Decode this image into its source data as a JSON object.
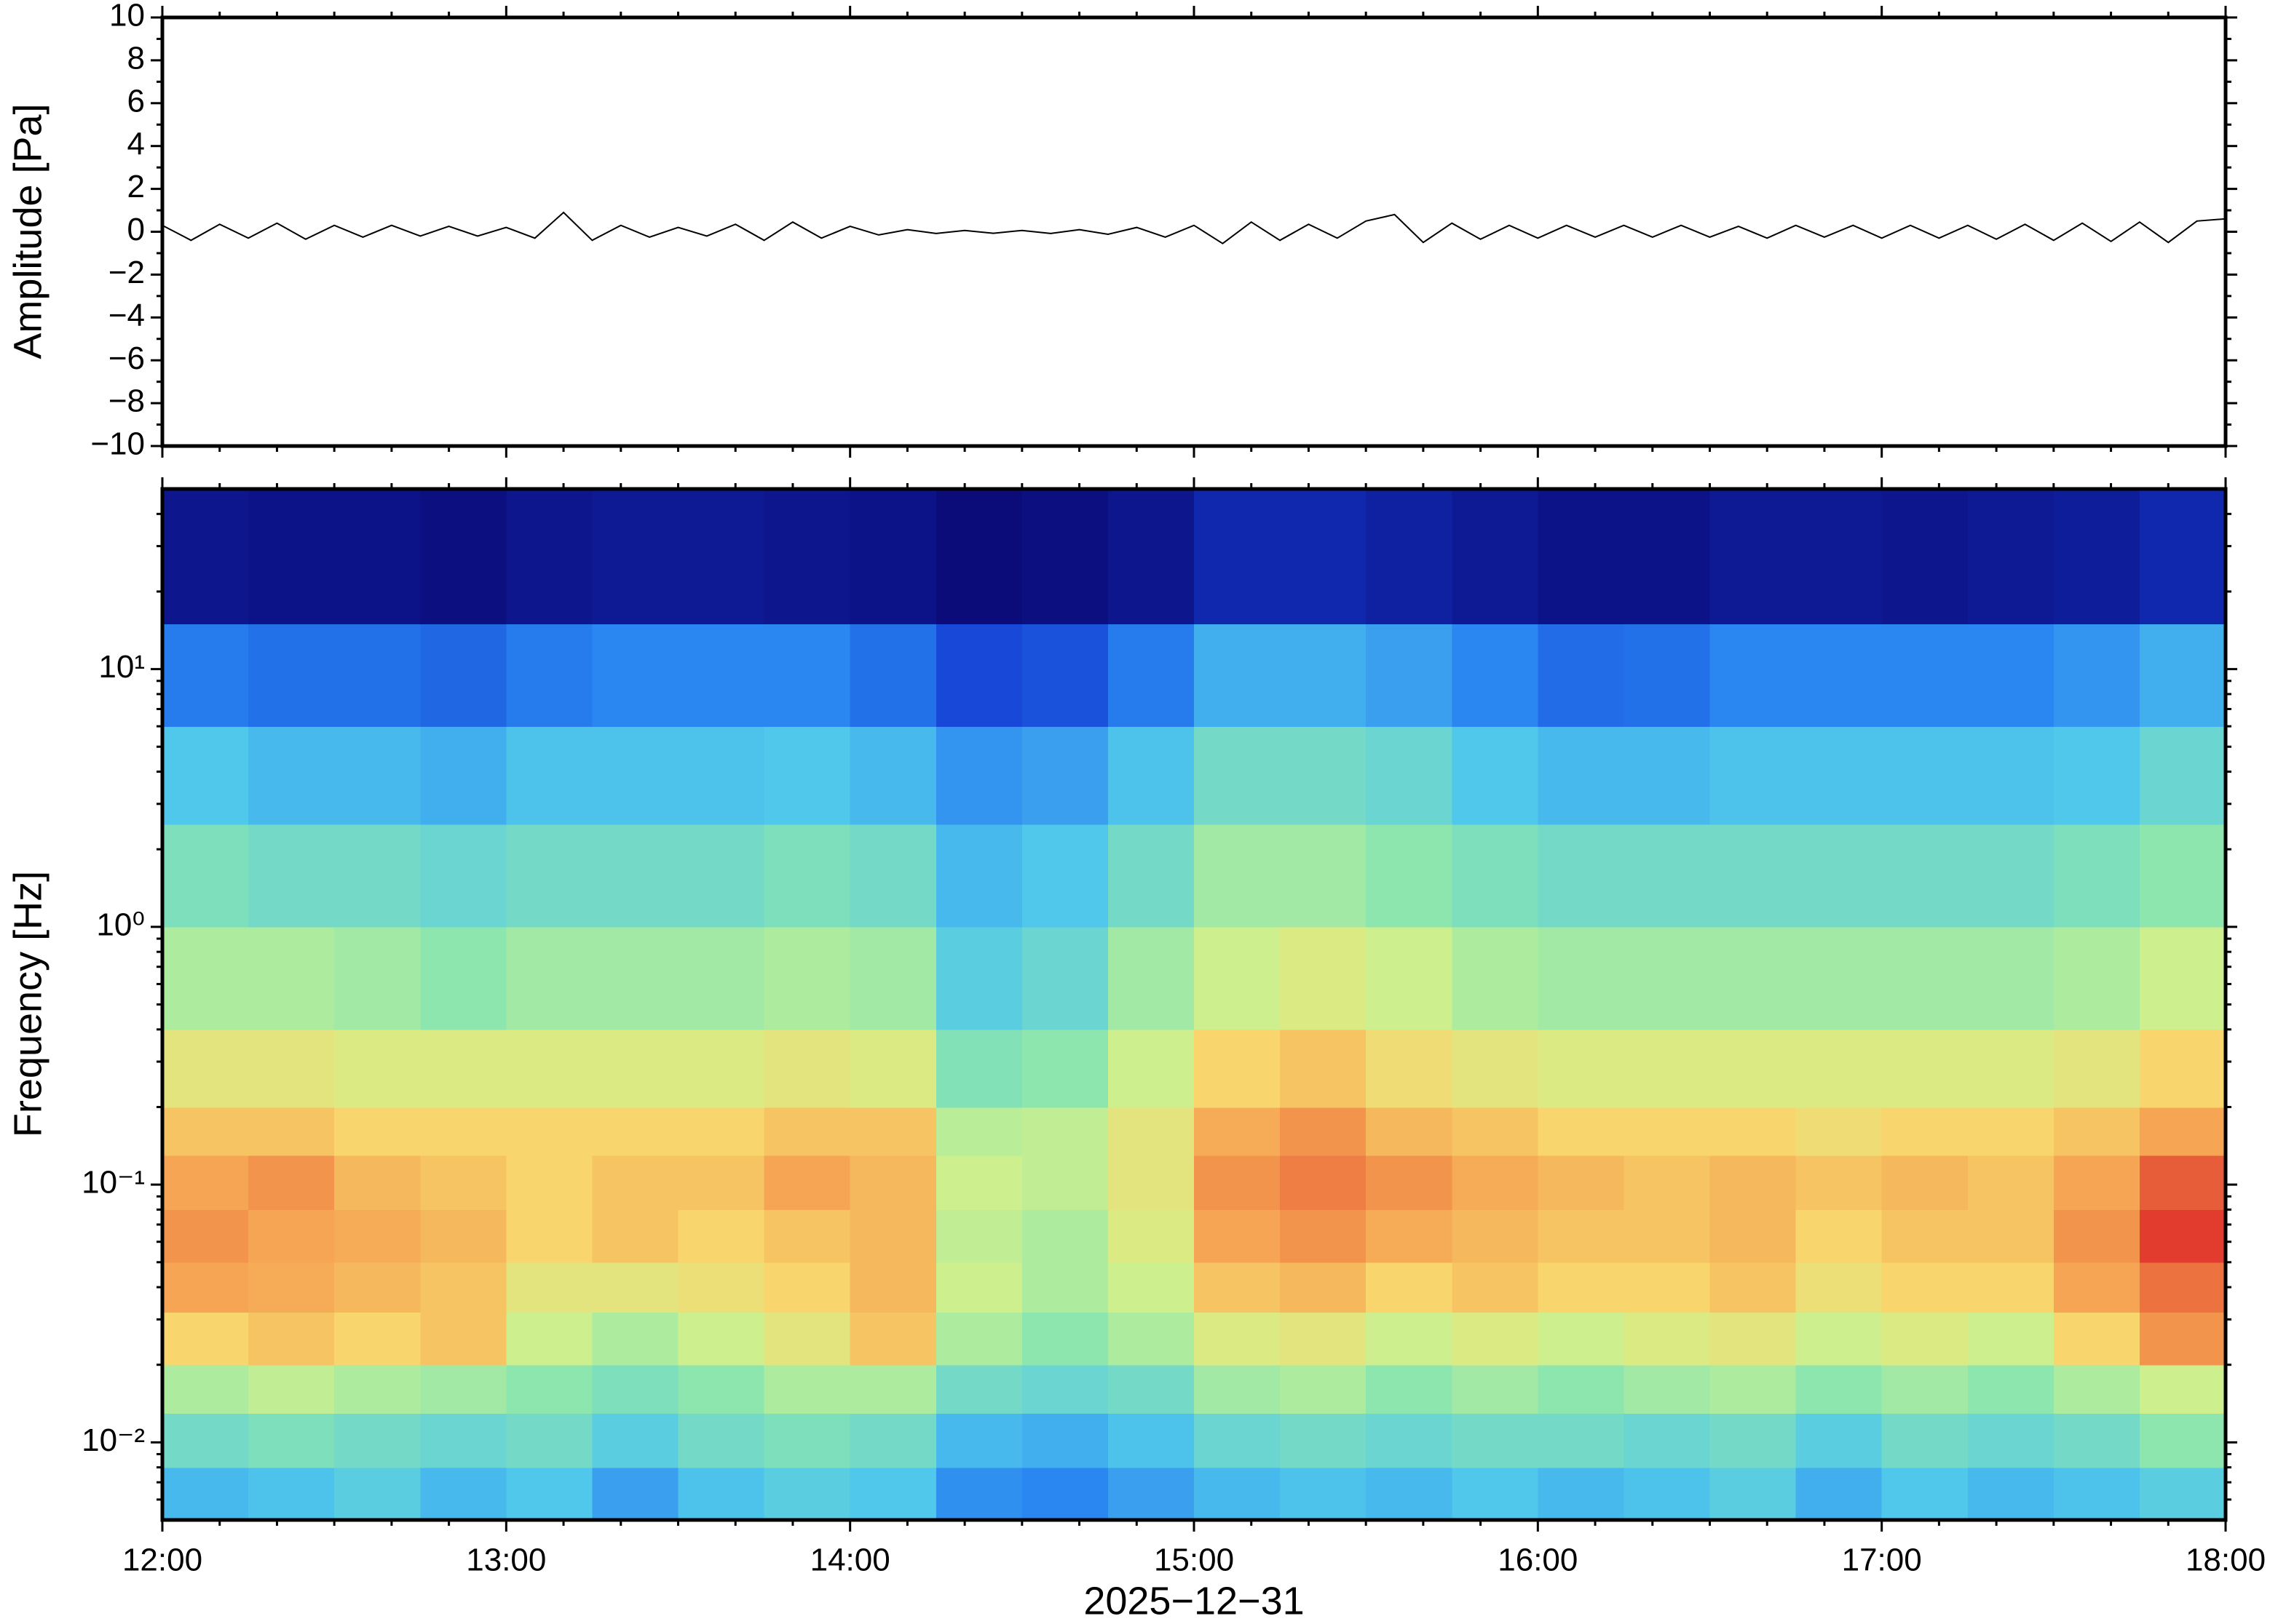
{
  "chart_data": [
    {
      "type": "line",
      "ylabel": "Amplitude [Pa]",
      "color": "#000000",
      "xlim": [
        0,
        360
      ],
      "xticks": [
        0,
        60,
        120,
        180,
        240,
        300,
        360
      ],
      "ylim": [
        -10,
        10
      ],
      "yticks": [
        {
          "value": -10,
          "label": "−10"
        },
        {
          "value": -8,
          "label": "−8"
        },
        {
          "value": -6,
          "label": "−6"
        },
        {
          "value": -4,
          "label": "−4"
        },
        {
          "value": -2,
          "label": "−2"
        },
        0,
        2,
        4,
        6,
        8,
        10
      ],
      "x": [
        0,
        5,
        10,
        15,
        20,
        25,
        30,
        35,
        40,
        45,
        50,
        55,
        60,
        65,
        70,
        75,
        80,
        85,
        90,
        95,
        100,
        105,
        110,
        115,
        120,
        125,
        130,
        135,
        140,
        145,
        150,
        155,
        160,
        165,
        170,
        175,
        180,
        185,
        190,
        195,
        200,
        205,
        210,
        215,
        220,
        225,
        230,
        235,
        240,
        245,
        250,
        255,
        260,
        265,
        270,
        275,
        280,
        285,
        290,
        295,
        300,
        305,
        310,
        315,
        320,
        325,
        330,
        335,
        340,
        345,
        350,
        355,
        360
      ],
      "values": [
        0.3,
        -0.4,
        0.35,
        -0.3,
        0.4,
        -0.35,
        0.3,
        -0.25,
        0.3,
        -0.2,
        0.25,
        -0.2,
        0.2,
        -0.3,
        0.9,
        -0.4,
        0.3,
        -0.25,
        0.2,
        -0.2,
        0.35,
        -0.4,
        0.45,
        -0.3,
        0.25,
        -0.15,
        0.1,
        -0.08,
        0.06,
        -0.07,
        0.06,
        -0.08,
        0.1,
        -0.12,
        0.2,
        -0.25,
        0.3,
        -0.55,
        0.45,
        -0.4,
        0.35,
        -0.3,
        0.5,
        0.8,
        -0.5,
        0.4,
        -0.35,
        0.3,
        -0.3,
        0.3,
        -0.25,
        0.3,
        -0.25,
        0.3,
        -0.25,
        0.25,
        -0.3,
        0.3,
        -0.25,
        0.3,
        -0.3,
        0.3,
        -0.3,
        0.3,
        -0.35,
        0.35,
        -0.4,
        0.4,
        -0.45,
        0.45,
        -0.5,
        0.5,
        0.6
      ]
    },
    {
      "type": "heatmap",
      "ylabel": "Frequency [Hz]",
      "xlabel": "2025−12−31",
      "colormap": "jet",
      "log_y": true,
      "xlim": [
        0,
        360
      ],
      "xticks": [
        {
          "value": 0,
          "label": "12:00"
        },
        {
          "value": 60,
          "label": "13:00"
        },
        {
          "value": 120,
          "label": "14:00"
        },
        {
          "value": 180,
          "label": "15:00"
        },
        {
          "value": 240,
          "label": "16:00"
        },
        {
          "value": 300,
          "label": "17:00"
        },
        {
          "value": 360,
          "label": "18:00"
        }
      ],
      "ylim": [
        0.005,
        50
      ],
      "yticks": [
        {
          "value": 0.01,
          "label": "10⁻²"
        },
        {
          "value": 0.1,
          "label": "10⁻¹"
        },
        {
          "value": 1,
          "label": "10⁰"
        },
        {
          "value": 10,
          "label": "10¹"
        }
      ],
      "x_edges": [
        0,
        15,
        30,
        45,
        60,
        75,
        90,
        105,
        120,
        135,
        150,
        165,
        180,
        195,
        210,
        225,
        240,
        255,
        270,
        285,
        300,
        315,
        330,
        345,
        360
      ],
      "y_edges": [
        0.005,
        0.008,
        0.013,
        0.02,
        0.032,
        0.05,
        0.08,
        0.13,
        0.2,
        0.4,
        1,
        2.5,
        6,
        15,
        50
      ],
      "z": [
        [
          4,
          4.2,
          4.5,
          4,
          4.3,
          3.5,
          4.2,
          4.5,
          4.3,
          3.2,
          3,
          3.5,
          4,
          4.2,
          4,
          4.3,
          4,
          4.2,
          4.5,
          3.8,
          4.3,
          4,
          4.2,
          4.5
        ],
        [
          5,
          5.2,
          5,
          4.8,
          5,
          4.5,
          5,
          5.2,
          5,
          4,
          3.8,
          4.2,
          4.8,
          5,
          4.8,
          5,
          5,
          4.8,
          5,
          4.5,
          5,
          4.8,
          5,
          5.5
        ],
        [
          6,
          6.3,
          6,
          5.8,
          5.5,
          5.2,
          5.5,
          6,
          6,
          5,
          4.8,
          5,
          5.8,
          6,
          5.5,
          5.8,
          5.5,
          5.8,
          6,
          5.5,
          5.8,
          5.5,
          6,
          6.5
        ],
        [
          7.5,
          7.8,
          7.5,
          7.8,
          6.5,
          6,
          6.5,
          7,
          7.8,
          6,
          5.5,
          6,
          6.8,
          7,
          6.5,
          6.8,
          6.5,
          6.8,
          7,
          6.5,
          6.8,
          6.5,
          7.5,
          8.5
        ],
        [
          8.3,
          8.2,
          8,
          7.8,
          7,
          7,
          7.2,
          7.5,
          8,
          6.5,
          6,
          6.5,
          7.8,
          8,
          7.5,
          7.8,
          7.5,
          7.5,
          7.8,
          7.2,
          7.5,
          7.5,
          8.3,
          8.8
        ],
        [
          8.5,
          8.3,
          8.2,
          8,
          7.5,
          7.8,
          7.5,
          7.8,
          8,
          6.3,
          6,
          6.8,
          8.3,
          8.5,
          8.2,
          8,
          7.8,
          7.8,
          8,
          7.5,
          7.8,
          7.8,
          8.5,
          9.3
        ],
        [
          8.3,
          8.5,
          8,
          7.8,
          7.5,
          7.8,
          7.8,
          8.3,
          8,
          6.5,
          6.3,
          7,
          8.5,
          8.7,
          8.5,
          8.2,
          8,
          7.8,
          8,
          7.8,
          8,
          7.8,
          8.3,
          9
        ],
        [
          7.8,
          7.8,
          7.5,
          7.5,
          7.5,
          7.5,
          7.5,
          7.8,
          7.8,
          6.2,
          6.3,
          7,
          8.2,
          8.5,
          8,
          7.8,
          7.5,
          7.5,
          7.5,
          7.3,
          7.5,
          7.5,
          7.8,
          8.3
        ],
        [
          7,
          7,
          6.8,
          6.8,
          6.8,
          6.8,
          6.8,
          7,
          6.8,
          5.3,
          5.5,
          6.5,
          7.5,
          7.8,
          7.3,
          7,
          6.8,
          6.8,
          6.8,
          6.8,
          6.8,
          6.8,
          7,
          7.5
        ],
        [
          6,
          6,
          5.8,
          5.5,
          5.8,
          5.8,
          5.8,
          6,
          5.8,
          4.5,
          4.8,
          5.8,
          6.5,
          6.8,
          6.5,
          6,
          5.8,
          5.8,
          5.8,
          5.8,
          5.8,
          5.8,
          6,
          6.5
        ],
        [
          5.2,
          5,
          5,
          4.8,
          5,
          5,
          5,
          5.2,
          5,
          4,
          4.3,
          5,
          5.8,
          5.8,
          5.5,
          5.2,
          5,
          5,
          5,
          5,
          5,
          5,
          5.2,
          5.5
        ],
        [
          4.3,
          4,
          4,
          3.8,
          4.2,
          4.2,
          4.2,
          4.3,
          4,
          3.3,
          3.5,
          4.2,
          5,
          5,
          4.8,
          4.3,
          4,
          4,
          4.2,
          4.2,
          4.2,
          4.2,
          4.3,
          4.8
        ],
        [
          2.8,
          2.6,
          2.6,
          2.4,
          2.8,
          3,
          3,
          3,
          2.6,
          1.8,
          2,
          2.8,
          3.8,
          3.8,
          3.5,
          3,
          2.5,
          2.6,
          3,
          3,
          3,
          3,
          3.3,
          3.8
        ],
        [
          0.5,
          0.4,
          0.4,
          0.3,
          0.5,
          0.6,
          0.6,
          0.5,
          0.4,
          0.2,
          0.3,
          0.5,
          1,
          1,
          0.8,
          0.6,
          0.4,
          0.4,
          0.6,
          0.6,
          0.5,
          0.6,
          0.7,
          1
        ]
      ]
    }
  ]
}
